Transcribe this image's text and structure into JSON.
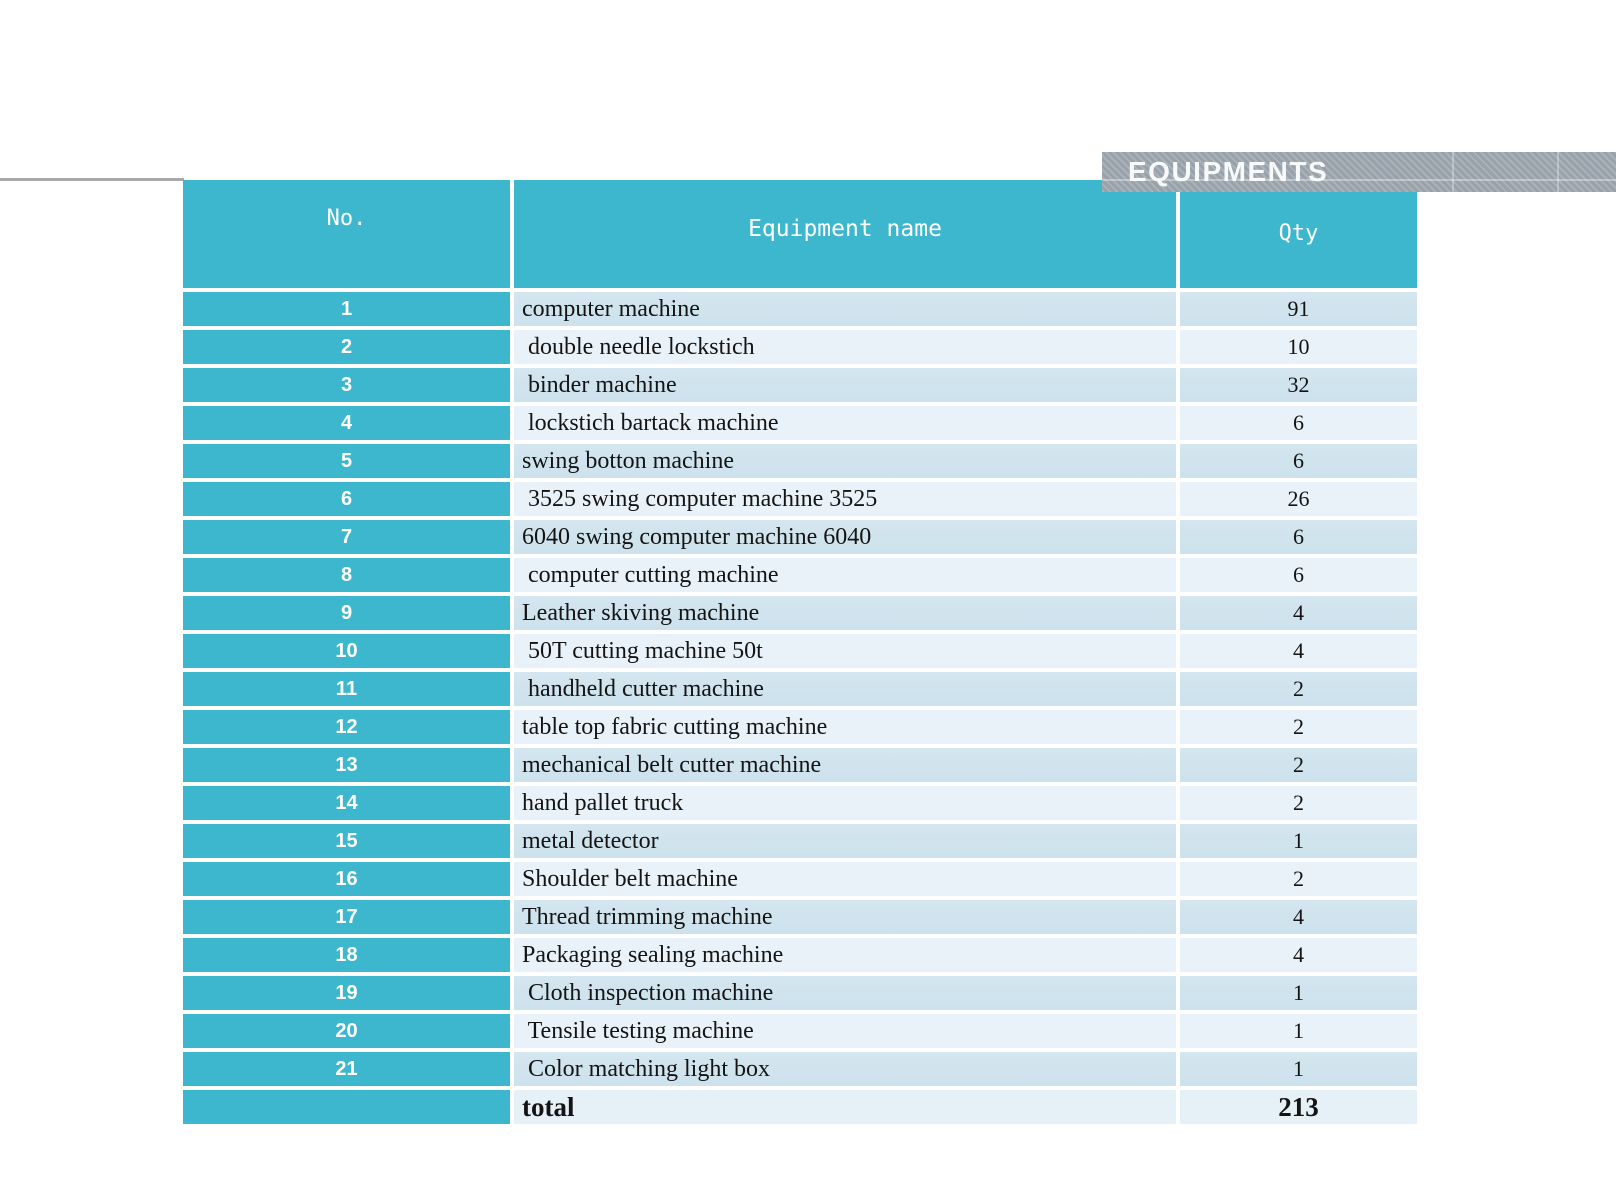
{
  "banner": {
    "title": "EQUIPMENTS"
  },
  "table": {
    "headers": {
      "no": "No.",
      "name": "Equipment name",
      "qty": "Qty"
    },
    "rows": [
      {
        "no": "1",
        "name": "computer machine",
        "qty": "91"
      },
      {
        "no": "2",
        "name": " double needle lockstich",
        "qty": "10"
      },
      {
        "no": "3",
        "name": " binder machine",
        "qty": "32"
      },
      {
        "no": "4",
        "name": " lockstich bartack machine",
        "qty": "6"
      },
      {
        "no": "5",
        "name": "swing botton machine",
        "qty": "6"
      },
      {
        "no": "6",
        "name": " 3525 swing computer machine 3525",
        "qty": "26"
      },
      {
        "no": "7",
        "name": "6040 swing computer machine 6040",
        "qty": "6"
      },
      {
        "no": "8",
        "name": " computer cutting machine",
        "qty": "6"
      },
      {
        "no": "9",
        "name": "Leather skiving machine",
        "qty": "4"
      },
      {
        "no": "10",
        "name": " 50T cutting machine 50t",
        "qty": "4"
      },
      {
        "no": "11",
        "name": " handheld cutter machine",
        "qty": "2"
      },
      {
        "no": "12",
        "name": "table top fabric cutting machine",
        "qty": "2"
      },
      {
        "no": "13",
        "name": "mechanical belt cutter machine",
        "qty": "2"
      },
      {
        "no": "14",
        "name": "hand pallet truck",
        "qty": "2"
      },
      {
        "no": "15",
        "name": "metal detector",
        "qty": "1"
      },
      {
        "no": "16",
        "name": "Shoulder belt machine",
        "qty": "2"
      },
      {
        "no": "17",
        "name": "Thread trimming machine",
        "qty": "4"
      },
      {
        "no": "18",
        "name": "Packaging sealing machine",
        "qty": "4"
      },
      {
        "no": "19",
        "name": " Cloth inspection machine",
        "qty": "1"
      },
      {
        "no": "20",
        "name": " Tensile testing machine",
        "qty": "1"
      },
      {
        "no": "21",
        "name": " Color matching light box",
        "qty": "1"
      }
    ],
    "total": {
      "label": "total",
      "qty": "213"
    }
  },
  "colors": {
    "accent_teal": "#3db7cd",
    "row_odd": "#cfe3ee",
    "row_even": "#e9f2f8",
    "total_row": "#e6f0f7",
    "banner_gray": "#99a2ab"
  }
}
